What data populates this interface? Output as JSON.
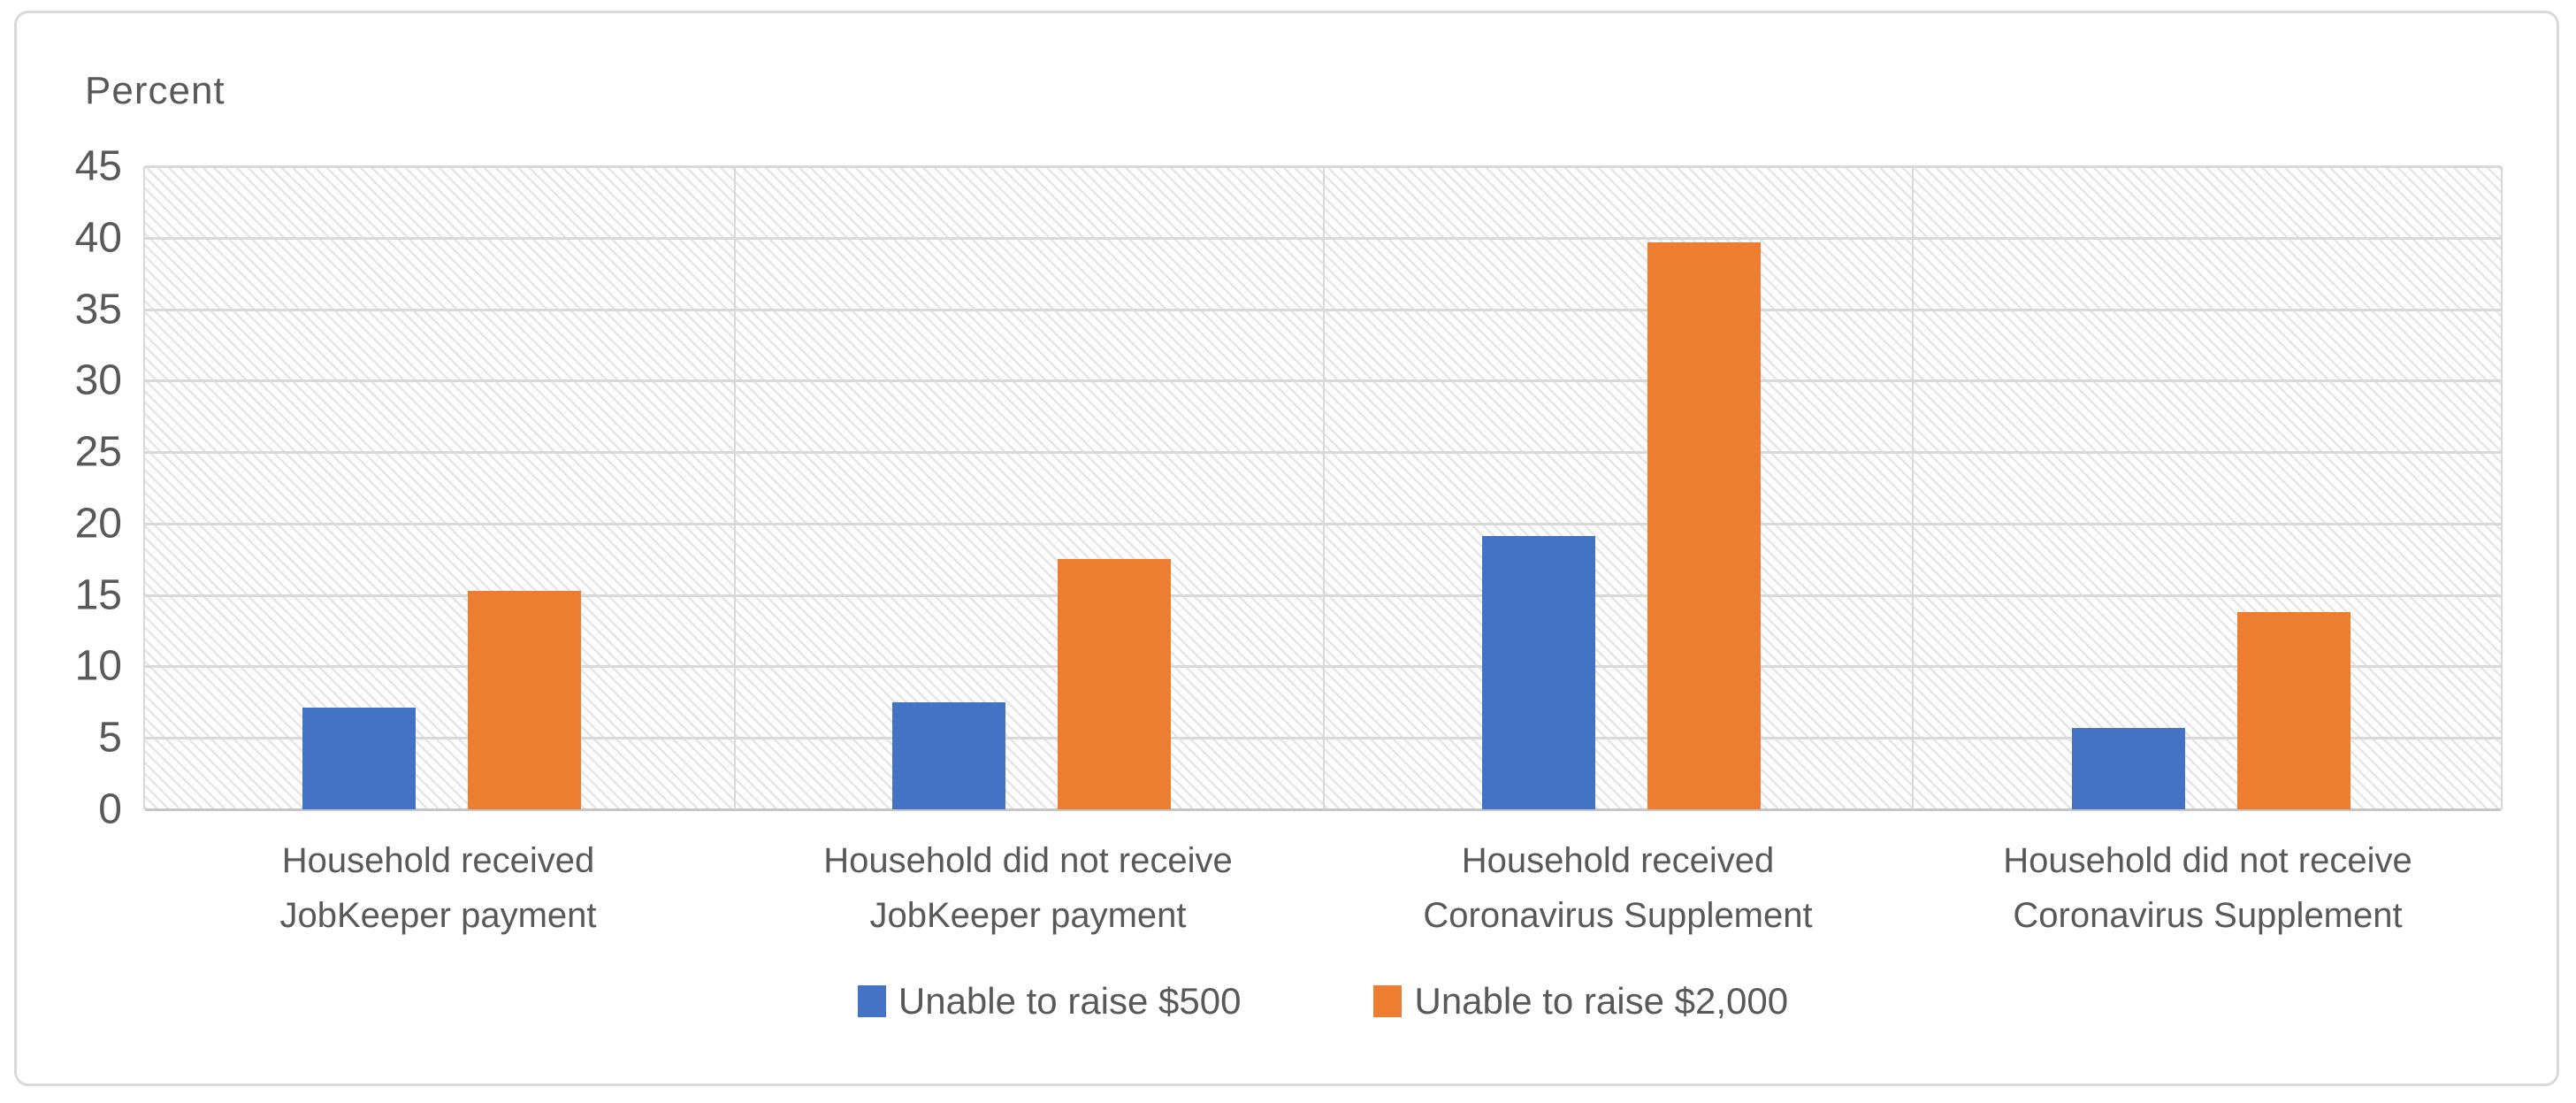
{
  "chart": {
    "axis_title": "Percent"
  },
  "chart_data": {
    "type": "bar",
    "title": "",
    "categories": [
      "Household received JobKeeper payment",
      "Household did not receive JobKeeper payment",
      "Household received Coronavirus Supplement",
      "Household did not receive Coronavirus Supplement"
    ],
    "category_lines": [
      [
        "Household received",
        "JobKeeper payment"
      ],
      [
        "Household did not receive",
        "JobKeeper payment"
      ],
      [
        "Household received",
        "Coronavirus Supplement"
      ],
      [
        "Household did not receive",
        "Coronavirus Supplement"
      ]
    ],
    "series": [
      {
        "name": "Unable to raise $500",
        "color": "#4472C4",
        "values": [
          7.1,
          7.5,
          19.1,
          5.7
        ]
      },
      {
        "name": "Unable to raise $2,000",
        "color": "#ED7D31",
        "values": [
          15.3,
          17.5,
          39.7,
          13.8
        ]
      }
    ],
    "xlabel": "",
    "ylabel": "Percent",
    "ylim": [
      0,
      45
    ],
    "ytick_step": 5,
    "y_tick_labels": [
      "45",
      "40",
      "35",
      "30",
      "25",
      "20",
      "15",
      "10",
      "5",
      "0"
    ],
    "grid": true,
    "legend_position": "bottom",
    "plot_background": "diagonal-hatch"
  },
  "colors": {
    "series_blue": "#4472C4",
    "series_orange": "#ED7D31",
    "gridline": "#D9D9D9",
    "axis_line": "#BFBFBF",
    "text": "#595959",
    "chart_border": "#D9D9D9",
    "background": "#FFFFFF"
  }
}
